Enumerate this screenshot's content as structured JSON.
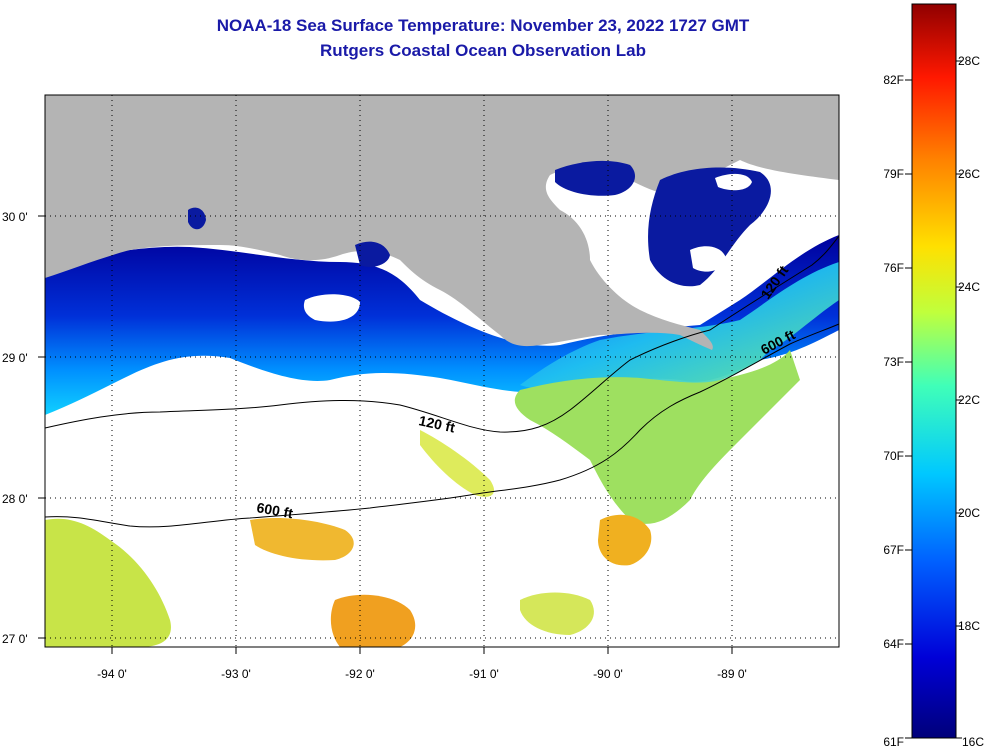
{
  "header": {
    "title": "NOAA-18 Sea Surface Temperature:  November 23, 2022 1727 GMT",
    "subtitle": "Rutgers Coastal Ocean Observation Lab"
  },
  "map": {
    "lon_labels": [
      "-94 0'",
      "-93 0'",
      "-92 0'",
      "-91 0'",
      "-90 0'",
      "-89 0'"
    ],
    "lat_labels": [
      "30 0'",
      "29 0'",
      "28 0'",
      "27 0'"
    ],
    "contours": [
      {
        "label": "120 ft"
      },
      {
        "label": "600 ft"
      }
    ],
    "land_color": "#b4b4b4",
    "grid": true
  },
  "colorbar": {
    "fahrenheit_labels": [
      "82F",
      "79F",
      "76F",
      "73F",
      "70F",
      "67F",
      "64F",
      "61F"
    ],
    "celsius_labels": [
      "28C",
      "26C",
      "24C",
      "22C",
      "20C",
      "18C",
      "16C"
    ],
    "stops": [
      "#00007a",
      "#0000d8",
      "#0060ff",
      "#00c8ff",
      "#40ffb8",
      "#c0ff3c",
      "#ffe000",
      "#ff8000",
      "#ff1800",
      "#900000"
    ]
  }
}
